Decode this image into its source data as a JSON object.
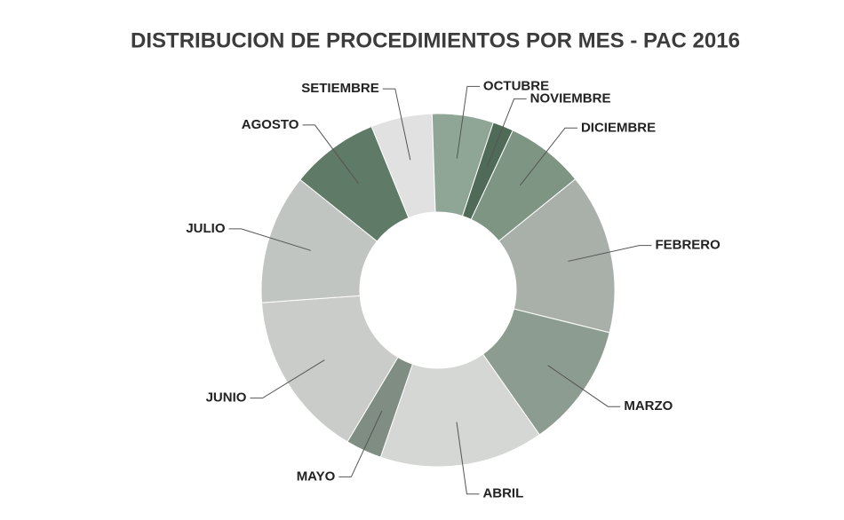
{
  "chart_data": {
    "type": "donut",
    "title": "DISTRIBUCION DE PROCEDIMIENTOS POR MES - PAC 2016",
    "categories": [
      "FEBRERO",
      "MARZO",
      "ABRIL",
      "MAYO",
      "JUNIO",
      "JULIO",
      "AGOSTO",
      "SETIEMBRE",
      "OCTUBRE",
      "NOVIEMBRE",
      "DICIEMBRE"
    ],
    "values": [
      14.7,
      11.4,
      15,
      3.3,
      15.3,
      11.9,
      8.1,
      5.6,
      5.6,
      1.9,
      7.2
    ],
    "colors": [
      "#a9b0aa",
      "#8c9c90",
      "#d4d7d4",
      "#7f8d83",
      "#c9ccc9",
      "#c1c5c1",
      "#5f7a66",
      "#e0e1e0",
      "#8fa595",
      "#4f6b58",
      "#7e9583"
    ]
  }
}
